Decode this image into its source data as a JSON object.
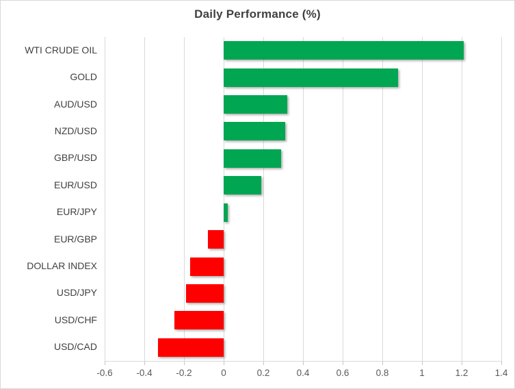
{
  "window": {
    "background": "#ffffff",
    "border_color": "#d9d9d9"
  },
  "chart_data": {
    "type": "bar",
    "orientation": "horizontal",
    "title": "Daily Performance (%)",
    "categories": [
      "WTI CRUDE OIL",
      "GOLD",
      "AUD/USD",
      "NZD/USD",
      "GBP/USD",
      "EUR/USD",
      "EUR/JPY",
      "EUR/GBP",
      "DOLLAR INDEX",
      "USD/JPY",
      "USD/CHF",
      "USD/CAD"
    ],
    "values": [
      1.21,
      0.88,
      0.32,
      0.31,
      0.29,
      0.19,
      0.02,
      -0.08,
      -0.17,
      -0.19,
      -0.25,
      -0.33
    ],
    "xlabel": "",
    "ylabel": "",
    "xlim": [
      -0.6,
      1.4
    ],
    "xticks": [
      -0.6,
      -0.4,
      -0.2,
      0,
      0.2,
      0.4,
      0.6,
      0.8,
      1,
      1.2,
      1.4
    ],
    "xtick_labels": [
      "-0.6",
      "-0.4",
      "-0.2",
      "0",
      "0.2",
      "0.4",
      "0.6",
      "0.8",
      "1",
      "1.2",
      "1.4"
    ],
    "grid": "vertical",
    "legend": "none",
    "colors": {
      "positive_bar": "#00A651",
      "negative_bar": "#FF0000",
      "gridline": "#d9d9d9",
      "tick": "#c5c5c5",
      "title_text": "#3f3f3f",
      "category_text": "#404040",
      "axis_text": "#595959"
    }
  }
}
